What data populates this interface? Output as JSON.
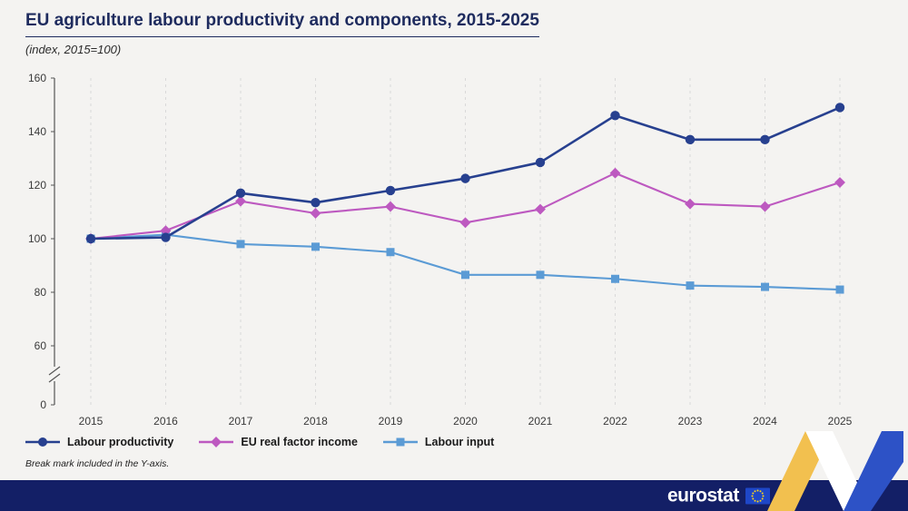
{
  "header": {
    "title": "EU agriculture labour productivity and components, 2015-2025",
    "subtitle": "(index, 2015=100)"
  },
  "chart_data": {
    "type": "line",
    "title": "EU agriculture labour productivity and components, 2015-2025",
    "subtitle": "(index, 2015=100)",
    "x": [
      2015,
      2016,
      2017,
      2018,
      2019,
      2020,
      2021,
      2022,
      2023,
      2024,
      2025
    ],
    "yticks": [
      0,
      60,
      80,
      100,
      120,
      140,
      160
    ],
    "ylim": [
      0,
      160
    ],
    "y_axis_break": true,
    "grid": "vertical-dashed",
    "legend_position": "bottom-left",
    "series": [
      {
        "name": "Labour productivity",
        "marker": "circle",
        "color": "#27408f",
        "values": [
          100,
          100.5,
          117,
          113.5,
          118,
          122.5,
          128.5,
          146,
          137,
          137,
          149
        ]
      },
      {
        "name": "EU real factor income",
        "marker": "diamond",
        "color": "#bd59c0",
        "values": [
          100,
          103,
          114,
          109.5,
          112,
          106,
          111,
          124.5,
          113,
          112,
          121
        ]
      },
      {
        "name": "Labour input",
        "marker": "square",
        "color": "#5b9bd5",
        "values": [
          100,
          101.5,
          98,
          97,
          95,
          86.5,
          86.5,
          85,
          82.5,
          82,
          81
        ]
      }
    ]
  },
  "footnote": "Break mark included in the Y-axis.",
  "footer": {
    "brand": "eurostat"
  },
  "colors": {
    "background": "#f4f3f1",
    "title": "#1e2b5e",
    "grid": "#d9d9d9",
    "axis": "#555555",
    "footer_bar": "#131f66",
    "ribbon_yellow": "#f2c04f",
    "ribbon_white": "#ffffff",
    "ribbon_blue": "#2d52c6",
    "flag_blue": "#1e47c8",
    "star_yellow": "#ffd617"
  }
}
